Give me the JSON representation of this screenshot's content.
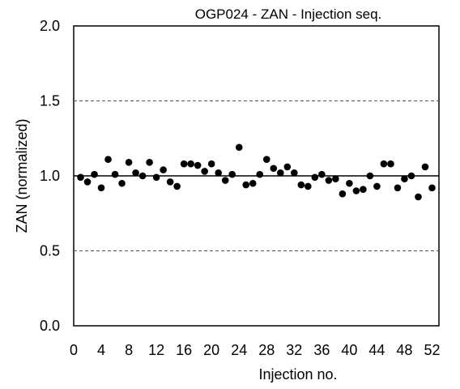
{
  "chart_data": {
    "type": "scatter",
    "title": "OGP024 -  ZAN - Injection seq.",
    "xlabel": "Injection no.",
    "ylabel": "ZAN  (normalized)",
    "xlim": [
      0,
      53
    ],
    "ylim": [
      0.0,
      2.0
    ],
    "xticks": [
      0,
      4,
      8,
      12,
      16,
      20,
      24,
      28,
      32,
      36,
      40,
      44,
      48,
      52
    ],
    "yticks": [
      "0.0",
      "0.5",
      "1.0",
      "1.5",
      "2.0"
    ],
    "reference_lines": [
      {
        "y": 1.0,
        "style": "solid"
      },
      {
        "y": 1.5,
        "style": "dashed"
      },
      {
        "y": 0.5,
        "style": "dashed"
      }
    ],
    "grid": false,
    "legend": "none",
    "marker_color": "#000000",
    "series": [
      {
        "x": [
          1,
          2,
          3,
          4,
          5,
          6,
          7,
          8,
          9,
          10,
          11,
          12,
          13,
          14,
          15,
          16,
          17,
          18,
          19,
          20,
          21,
          22,
          23,
          24,
          25,
          26,
          27,
          28,
          29,
          30,
          31,
          32,
          33,
          34,
          35,
          36,
          37,
          38,
          39,
          40,
          41,
          42,
          43,
          44,
          45,
          46,
          47,
          48,
          49,
          50,
          51,
          52
        ],
        "y": [
          0.99,
          0.96,
          1.01,
          0.92,
          1.11,
          1.01,
          0.95,
          1.09,
          1.02,
          1.0,
          1.09,
          0.99,
          1.04,
          0.96,
          0.93,
          1.08,
          1.08,
          1.07,
          1.03,
          1.08,
          1.02,
          0.97,
          1.01,
          1.19,
          0.94,
          0.95,
          1.01,
          1.11,
          1.05,
          1.02,
          1.06,
          1.02,
          0.94,
          0.93,
          0.99,
          1.01,
          0.97,
          0.98,
          0.88,
          0.95,
          0.9,
          0.91,
          1.0,
          0.93,
          1.08,
          1.08,
          0.92,
          0.98,
          1.0,
          0.86,
          1.06,
          0.92
        ]
      }
    ]
  }
}
